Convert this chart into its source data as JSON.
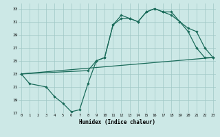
{
  "xlabel": "Humidex (Indice chaleur)",
  "bg_color": "#cce8e6",
  "grid_color": "#a0c8c5",
  "line_color": "#1a6b5a",
  "xlim_min": -0.3,
  "xlim_max": 23.3,
  "ylim_min": 17,
  "ylim_max": 33.8,
  "xticks": [
    0,
    1,
    2,
    3,
    4,
    5,
    6,
    7,
    8,
    9,
    10,
    11,
    12,
    13,
    14,
    15,
    16,
    17,
    18,
    19,
    20,
    21,
    22,
    23
  ],
  "yticks": [
    17,
    19,
    21,
    23,
    25,
    27,
    29,
    31,
    33
  ],
  "line1_x": [
    0,
    1,
    3,
    4,
    5,
    6,
    7,
    8,
    9,
    10,
    11,
    12,
    13,
    14,
    15,
    16,
    17,
    18,
    19,
    20,
    21,
    22,
    23
  ],
  "line1_y": [
    23,
    21.5,
    21,
    19.5,
    18.5,
    17.2,
    17.5,
    21.5,
    25,
    25.5,
    30.5,
    31.5,
    31.5,
    31,
    32.5,
    33,
    32.5,
    32.5,
    31,
    30,
    29.5,
    27,
    25.5
  ],
  "line2_x": [
    0,
    23
  ],
  "line2_y": [
    23,
    25.5
  ],
  "line3_x": [
    0,
    8,
    9,
    10,
    11,
    12,
    13,
    14,
    15,
    16,
    17,
    18,
    19,
    20,
    21,
    22,
    23
  ],
  "line3_y": [
    23,
    23.5,
    25,
    25.5,
    30.5,
    32,
    31.5,
    31,
    32.5,
    33,
    32.5,
    32,
    31,
    29.5,
    27,
    25.5,
    25.5
  ]
}
